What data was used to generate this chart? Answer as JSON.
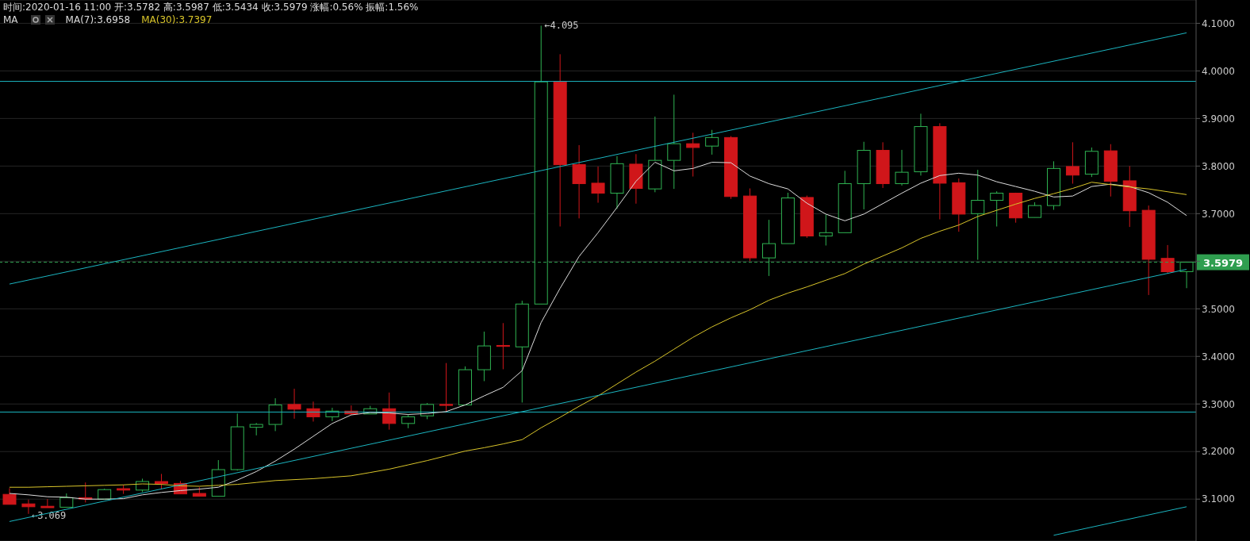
{
  "chart_data": {
    "type": "candlestick",
    "title": "时间:2020-01-16 11:00  开:3.5782  高:3.5987  低:3.5434  收:3.5979  涨幅:0.56%  振幅:1.56%",
    "legend_title": "MA",
    "legend": "top left",
    "grid": "y",
    "categories": [
      null,
      null,
      null,
      null,
      null,
      null,
      null,
      null,
      null,
      null,
      null,
      null,
      null,
      null,
      null,
      null,
      null,
      null,
      null,
      null,
      null,
      null,
      null,
      null,
      null,
      null,
      null,
      null,
      null,
      null,
      null,
      null,
      null,
      null,
      null,
      null,
      null,
      null,
      null,
      null,
      null,
      null,
      null,
      null,
      null,
      null,
      null,
      null,
      null,
      null,
      null,
      null,
      null,
      null,
      null,
      null,
      null,
      null,
      null,
      null,
      null,
      null,
      null
    ],
    "ohlc": [
      [
        3.11,
        3.123,
        3.089,
        3.089
      ],
      [
        3.09,
        3.099,
        3.069,
        3.084
      ],
      [
        3.085,
        3.1,
        3.082,
        3.082
      ],
      [
        3.083,
        3.112,
        3.083,
        3.103
      ],
      [
        3.103,
        3.135,
        3.093,
        3.1
      ],
      [
        3.1,
        3.122,
        3.1,
        3.12
      ],
      [
        3.122,
        3.13,
        3.111,
        3.119
      ],
      [
        3.119,
        3.143,
        3.115,
        3.137
      ],
      [
        3.137,
        3.153,
        3.121,
        3.133
      ],
      [
        3.133,
        3.138,
        3.111,
        3.111
      ],
      [
        3.112,
        3.125,
        3.106,
        3.106
      ],
      [
        3.106,
        3.182,
        3.106,
        3.162
      ],
      [
        3.162,
        3.28,
        3.16,
        3.252
      ],
      [
        3.251,
        3.26,
        3.234,
        3.257
      ],
      [
        3.257,
        3.312,
        3.243,
        3.298
      ],
      [
        3.299,
        3.332,
        3.269,
        3.289
      ],
      [
        3.29,
        3.305,
        3.263,
        3.273
      ],
      [
        3.273,
        3.292,
        3.264,
        3.285
      ],
      [
        3.285,
        3.297,
        3.277,
        3.279
      ],
      [
        3.279,
        3.296,
        3.279,
        3.29
      ],
      [
        3.29,
        3.324,
        3.246,
        3.259
      ],
      [
        3.259,
        3.277,
        3.249,
        3.273
      ],
      [
        3.275,
        3.302,
        3.268,
        3.299
      ],
      [
        3.299,
        3.386,
        3.282,
        3.297
      ],
      [
        3.298,
        3.379,
        3.298,
        3.372
      ],
      [
        3.372,
        3.452,
        3.348,
        3.422
      ],
      [
        3.423,
        3.47,
        3.373,
        3.421
      ],
      [
        3.42,
        3.517,
        3.303,
        3.51
      ],
      [
        3.51,
        4.095,
        3.51,
        3.977
      ],
      [
        3.977,
        4.035,
        3.673,
        3.803
      ],
      [
        3.803,
        3.844,
        3.69,
        3.763
      ],
      [
        3.764,
        3.799,
        3.723,
        3.743
      ],
      [
        3.743,
        3.821,
        3.71,
        3.805
      ],
      [
        3.804,
        3.825,
        3.721,
        3.753
      ],
      [
        3.752,
        3.904,
        3.745,
        3.812
      ],
      [
        3.812,
        3.95,
        3.752,
        3.847
      ],
      [
        3.847,
        3.87,
        3.778,
        3.839
      ],
      [
        3.842,
        3.876,
        3.824,
        3.86
      ],
      [
        3.86,
        3.863,
        3.731,
        3.736
      ],
      [
        3.737,
        3.753,
        3.6,
        3.607
      ],
      [
        3.607,
        3.687,
        3.569,
        3.637
      ],
      [
        3.637,
        3.744,
        3.637,
        3.733
      ],
      [
        3.734,
        3.738,
        3.649,
        3.653
      ],
      [
        3.653,
        3.698,
        3.633,
        3.66
      ],
      [
        3.66,
        3.79,
        3.66,
        3.763
      ],
      [
        3.763,
        3.851,
        3.709,
        3.833
      ],
      [
        3.833,
        3.85,
        3.754,
        3.763
      ],
      [
        3.763,
        3.834,
        3.759,
        3.787
      ],
      [
        3.788,
        3.91,
        3.78,
        3.883
      ],
      [
        3.883,
        3.89,
        3.688,
        3.764
      ],
      [
        3.765,
        3.774,
        3.662,
        3.699
      ],
      [
        3.7,
        3.792,
        3.603,
        3.728
      ],
      [
        3.728,
        3.747,
        3.673,
        3.743
      ],
      [
        3.743,
        3.744,
        3.681,
        3.691
      ],
      [
        3.692,
        3.724,
        3.692,
        3.717
      ],
      [
        3.717,
        3.81,
        3.708,
        3.795
      ],
      [
        3.799,
        3.85,
        3.763,
        3.781
      ],
      [
        3.783,
        3.839,
        3.777,
        3.831
      ],
      [
        3.832,
        3.846,
        3.736,
        3.768
      ],
      [
        3.769,
        3.8,
        3.672,
        3.706
      ],
      [
        3.707,
        3.717,
        3.529,
        3.604
      ],
      [
        3.606,
        3.634,
        3.575,
        3.578
      ],
      [
        3.5782,
        3.5987,
        3.5434,
        3.5979
      ]
    ],
    "series": [
      {
        "type": "line",
        "name": "MA(7):3.6958",
        "color": "#dddddd",
        "values": [
          3.112,
          3.109,
          3.105,
          3.104,
          3.1,
          3.1,
          3.101,
          3.109,
          3.114,
          3.118,
          3.121,
          3.125,
          3.14,
          3.158,
          3.18,
          3.205,
          3.232,
          3.259,
          3.277,
          3.282,
          3.281,
          3.278,
          3.28,
          3.284,
          3.298,
          3.317,
          3.335,
          3.37,
          3.471,
          3.543,
          3.61,
          3.66,
          3.713,
          3.768,
          3.808,
          3.79,
          3.795,
          3.808,
          3.807,
          3.779,
          3.763,
          3.752,
          3.722,
          3.699,
          3.685,
          3.699,
          3.721,
          3.743,
          3.764,
          3.78,
          3.785,
          3.781,
          3.767,
          3.757,
          3.747,
          3.735,
          3.737,
          3.757,
          3.762,
          3.757,
          3.744,
          3.724,
          3.696
        ]
      },
      {
        "type": "line",
        "name": "MA(30):3.7397",
        "color": "#d9c52a",
        "values": [
          3.125,
          3.125,
          3.126,
          3.127,
          3.128,
          3.129,
          3.13,
          3.132,
          3.131,
          3.128,
          3.127,
          3.129,
          3.131,
          3.135,
          3.139,
          3.141,
          3.143,
          3.146,
          3.149,
          3.156,
          3.163,
          3.172,
          3.181,
          3.191,
          3.201,
          3.208,
          3.216,
          3.225,
          3.25,
          3.272,
          3.295,
          3.317,
          3.342,
          3.367,
          3.39,
          3.415,
          3.44,
          3.462,
          3.481,
          3.498,
          3.518,
          3.533,
          3.546,
          3.56,
          3.574,
          3.594,
          3.611,
          3.628,
          3.648,
          3.663,
          3.676,
          3.694,
          3.707,
          3.72,
          3.732,
          3.742,
          3.753,
          3.766,
          3.761,
          3.756,
          3.752,
          3.746,
          3.74
        ]
      },
      {
        "type": "line",
        "color": "#1bb5c0",
        "values": [
          3.552,
          null,
          null,
          null,
          null,
          null,
          null,
          null,
          null,
          null,
          null,
          null,
          null,
          null,
          null,
          null,
          null,
          null,
          null,
          null,
          null,
          null,
          null,
          null,
          null,
          null,
          null,
          null,
          null,
          null,
          null,
          null,
          null,
          null,
          null,
          null,
          null,
          null,
          null,
          null,
          null,
          null,
          null,
          null,
          null,
          null,
          null,
          null,
          null,
          null,
          null,
          null,
          null,
          null,
          null,
          null,
          null,
          null,
          null,
          null,
          null,
          null,
          4.08
        ]
      },
      {
        "type": "line",
        "color": "#1bb5c0",
        "values": [
          3.053,
          null,
          null,
          null,
          null,
          null,
          null,
          null,
          null,
          null,
          null,
          null,
          null,
          null,
          null,
          null,
          null,
          null,
          null,
          null,
          null,
          null,
          null,
          null,
          null,
          null,
          null,
          null,
          null,
          null,
          null,
          null,
          null,
          null,
          null,
          null,
          null,
          null,
          null,
          null,
          null,
          null,
          null,
          null,
          null,
          null,
          null,
          null,
          null,
          null,
          null,
          null,
          null,
          null,
          null,
          null,
          null,
          null,
          null,
          null,
          null,
          null,
          3.583
        ]
      },
      {
        "type": "line",
        "color": "#1bb5c0",
        "values": [
          null,
          null,
          null,
          null,
          null,
          null,
          null,
          null,
          null,
          null,
          null,
          null,
          null,
          null,
          null,
          null,
          null,
          null,
          null,
          null,
          null,
          null,
          null,
          null,
          null,
          null,
          null,
          null,
          null,
          null,
          null,
          null,
          null,
          null,
          null,
          null,
          null,
          null,
          null,
          null,
          null,
          null,
          null,
          null,
          null,
          null,
          null,
          null,
          null,
          null,
          null,
          null,
          null,
          null,
          null,
          3.024,
          null,
          null,
          null,
          null,
          null,
          null,
          3.084
        ]
      }
    ],
    "ylim": [
      3.012,
      4.149
    ],
    "yticks": [
      {
        "value": 3.1,
        "label": "3.1000"
      },
      {
        "value": 3.2,
        "label": "3.2000"
      },
      {
        "value": 3.3,
        "label": "3.3000"
      },
      {
        "value": 3.4,
        "label": "3.4000"
      },
      {
        "value": 3.5,
        "label": "3.5000"
      },
      {
        "value": 3.6,
        "label": null
      },
      {
        "value": 3.7,
        "label": "3.7000"
      },
      {
        "value": 3.8,
        "label": "3.8000"
      },
      {
        "value": 3.9,
        "label": "3.9000"
      },
      {
        "value": 4.0,
        "label": "4.0000"
      },
      {
        "value": 4.1,
        "label": "4.1000"
      }
    ],
    "ref_lines": [
      {
        "axis": "y",
        "value": 3.978,
        "color": "#1bb5c0"
      },
      {
        "axis": "y",
        "value": 3.283,
        "color": "#1bb5c0"
      },
      {
        "axis": "y",
        "value": 3.5979,
        "label": "3.5979",
        "color": "#2f9e4f",
        "line_style": "dashed"
      }
    ],
    "annotations": [
      "←4.095",
      "←3.069"
    ]
  }
}
